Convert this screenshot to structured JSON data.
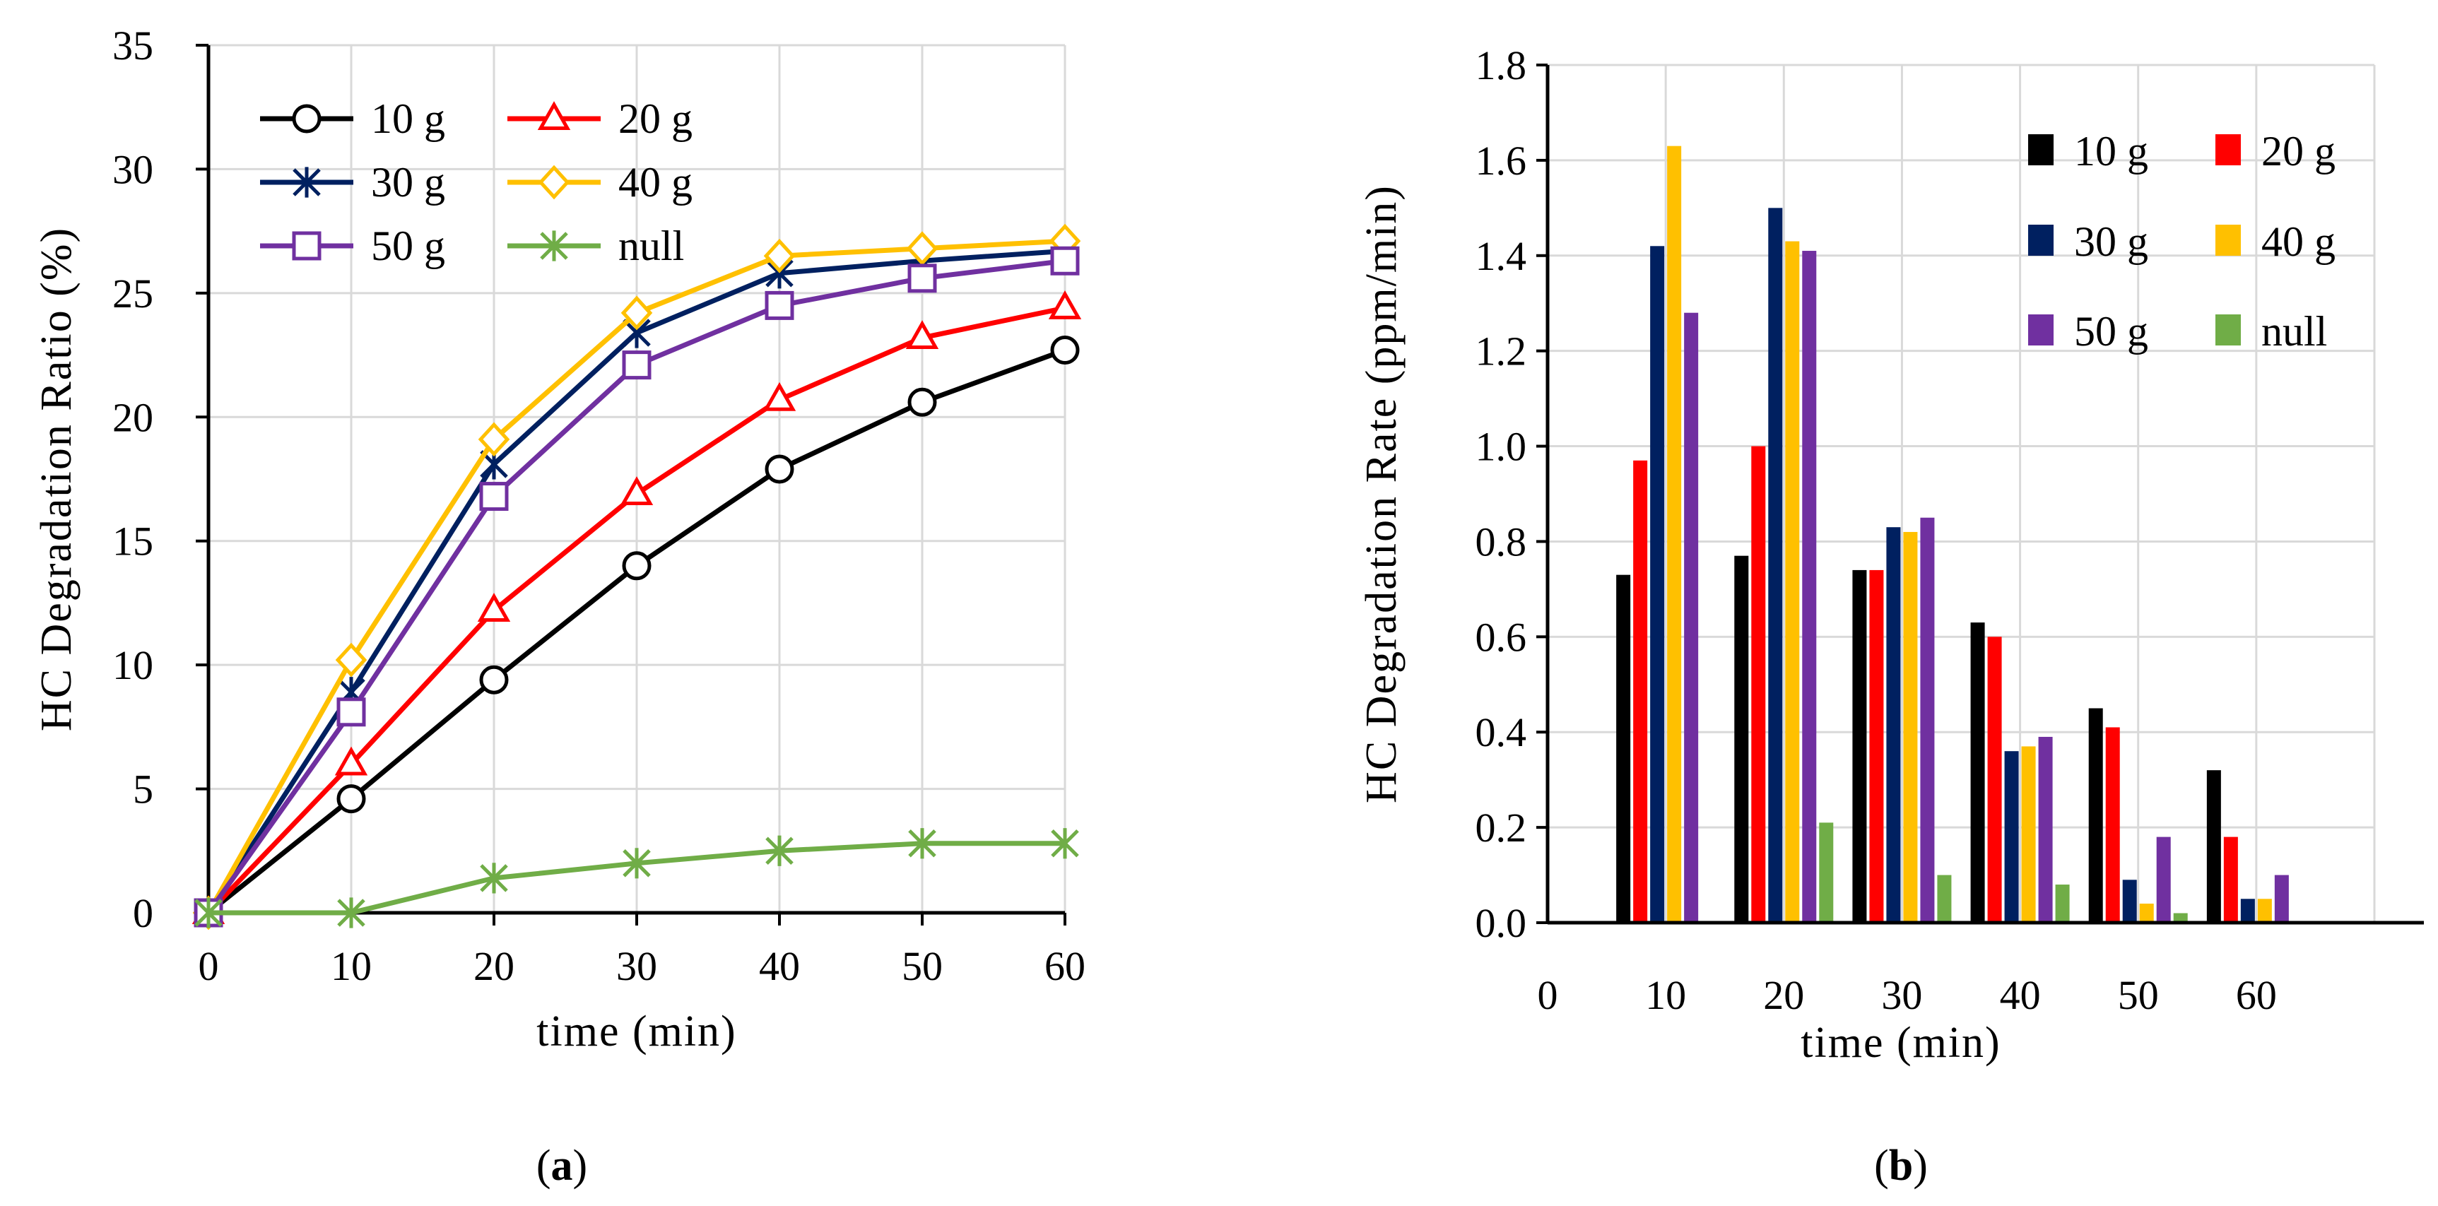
{
  "chart_data": [
    {
      "type": "line",
      "panel_label": "a",
      "title": "",
      "xlabel": "time  (min)",
      "ylabel": "HC  Degradation  Ratio  (%)",
      "xlim": [
        0,
        60
      ],
      "ylim": [
        0,
        35
      ],
      "x_ticks": [
        0,
        10,
        20,
        30,
        40,
        50,
        60
      ],
      "y_ticks": [
        0,
        5,
        10,
        15,
        20,
        25,
        30,
        35
      ],
      "grid": true,
      "legend_position": "top-left",
      "x": [
        0,
        10,
        20,
        30,
        40,
        50,
        60
      ],
      "series": [
        {
          "name": "10 g",
          "color": "#000000",
          "marker": "circle",
          "values": [
            0,
            4.6,
            9.4,
            14.0,
            17.9,
            20.6,
            22.7
          ]
        },
        {
          "name": "20 g",
          "color": "#ff0000",
          "marker": "triangle",
          "values": [
            0,
            6.0,
            12.2,
            16.9,
            20.7,
            23.2,
            24.4
          ]
        },
        {
          "name": "30 g",
          "color": "#002060",
          "marker": "star",
          "values": [
            0,
            8.9,
            18.1,
            23.4,
            25.8,
            26.3,
            26.7
          ]
        },
        {
          "name": "40 g",
          "color": "#ffc000",
          "marker": "diamond",
          "values": [
            0,
            10.2,
            19.1,
            24.2,
            26.5,
            26.8,
            27.1
          ]
        },
        {
          "name": "50 g",
          "color": "#7030a0",
          "marker": "square",
          "values": [
            0,
            8.1,
            16.8,
            22.1,
            24.5,
            25.6,
            26.3
          ]
        },
        {
          "name": "null",
          "color": "#70ad47",
          "marker": "star",
          "values": [
            0,
            0.0,
            1.4,
            2.0,
            2.5,
            2.8,
            2.8
          ]
        }
      ]
    },
    {
      "type": "bar",
      "panel_label": "b",
      "title": "",
      "xlabel": "time  (min)",
      "ylabel": "HC  Degradation  Rate  (ppm/min)",
      "xlim": [
        0,
        70
      ],
      "ylim": [
        0,
        1.8
      ],
      "x_ticks": [
        0,
        10,
        20,
        30,
        40,
        50,
        60
      ],
      "y_ticks": [
        "0.0",
        "0.2",
        "0.4",
        "0.6",
        "0.8",
        "1.0",
        "1.2",
        "1.4",
        "1.6",
        "1.8"
      ],
      "grid": true,
      "legend_position": "top-right",
      "categories": [
        10,
        20,
        30,
        40,
        50,
        60
      ],
      "series": [
        {
          "name": "10 g",
          "color": "#000000",
          "values": [
            0.73,
            0.77,
            0.74,
            0.63,
            0.45,
            0.32
          ]
        },
        {
          "name": "20 g",
          "color": "#ff0000",
          "values": [
            0.97,
            1.0,
            0.74,
            0.6,
            0.41,
            0.18
          ]
        },
        {
          "name": "30 g",
          "color": "#002060",
          "values": [
            1.42,
            1.5,
            0.83,
            0.36,
            0.09,
            0.05
          ]
        },
        {
          "name": "40 g",
          "color": "#ffc000",
          "values": [
            1.63,
            1.43,
            0.82,
            0.37,
            0.04,
            0.05
          ]
        },
        {
          "name": "50 g",
          "color": "#7030a0",
          "values": [
            1.28,
            1.41,
            0.85,
            0.39,
            0.18,
            0.1
          ]
        },
        {
          "name": "null",
          "color": "#70ad47",
          "values": [
            0.0,
            0.21,
            0.1,
            0.08,
            0.02,
            0.0
          ]
        }
      ]
    }
  ]
}
